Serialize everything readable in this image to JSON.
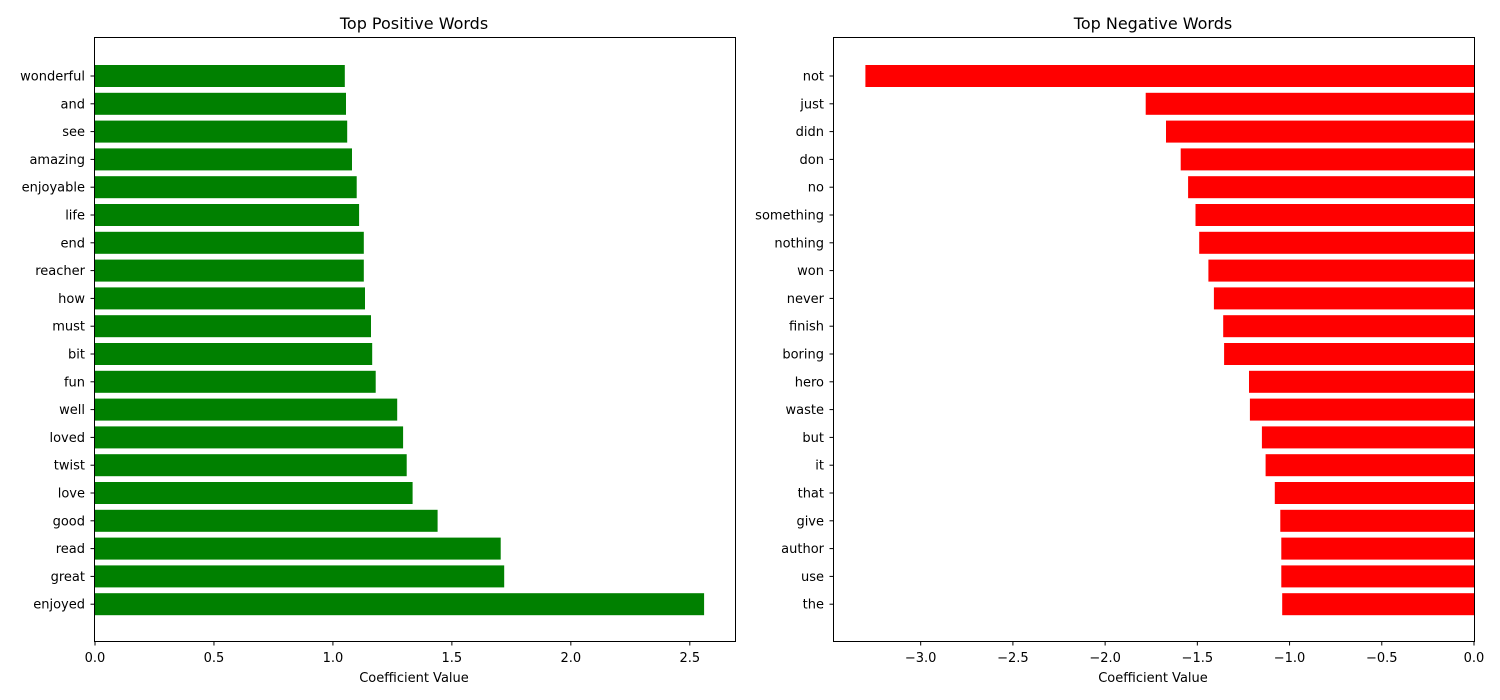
{
  "chart_data": [
    {
      "type": "bar",
      "orientation": "horizontal",
      "title": "Top Positive Words",
      "xlabel": "Coefficient Value",
      "ylabel": "",
      "xlim": [
        0,
        2.69
      ],
      "xticks": [
        0.0,
        0.5,
        1.0,
        1.5,
        2.0,
        2.5
      ],
      "xtick_labels": [
        "0.0",
        "0.5",
        "1.0",
        "1.5",
        "2.0",
        "2.5"
      ],
      "color": "#008000",
      "grid": false,
      "categories": [
        "wonderful",
        "and",
        "see",
        "amazing",
        "enjoyable",
        "life",
        "end",
        "reacher",
        "how",
        "must",
        "bit",
        "fun",
        "well",
        "loved",
        "twist",
        "love",
        "good",
        "read",
        "great",
        "enjoyed"
      ],
      "values": [
        1.05,
        1.055,
        1.06,
        1.08,
        1.1,
        1.11,
        1.13,
        1.13,
        1.135,
        1.16,
        1.165,
        1.18,
        1.27,
        1.295,
        1.31,
        1.335,
        1.44,
        1.705,
        1.72,
        2.56
      ]
    },
    {
      "type": "bar",
      "orientation": "horizontal",
      "title": "Top Negative Words",
      "xlabel": "Coefficient Value",
      "ylabel": "",
      "xlim": [
        -3.47,
        0.0
      ],
      "xticks": [
        -3.0,
        -2.5,
        -2.0,
        -1.5,
        -1.0,
        -0.5,
        0.0
      ],
      "xtick_labels": [
        "−3.0",
        "−2.5",
        "−2.0",
        "−1.5",
        "−1.0",
        "−0.5",
        "0.0"
      ],
      "color": "#ff0000",
      "grid": false,
      "categories": [
        "not",
        "just",
        "didn",
        "don",
        "no",
        "something",
        "nothing",
        "won",
        "never",
        "finish",
        "boring",
        "hero",
        "waste",
        "but",
        "it",
        "that",
        "give",
        "author",
        "use",
        "the"
      ],
      "values": [
        -3.3,
        -1.78,
        -1.67,
        -1.59,
        -1.55,
        -1.51,
        -1.49,
        -1.44,
        -1.41,
        -1.36,
        -1.355,
        -1.22,
        -1.215,
        -1.15,
        -1.13,
        -1.08,
        -1.05,
        -1.045,
        -1.045,
        -1.04
      ]
    }
  ]
}
